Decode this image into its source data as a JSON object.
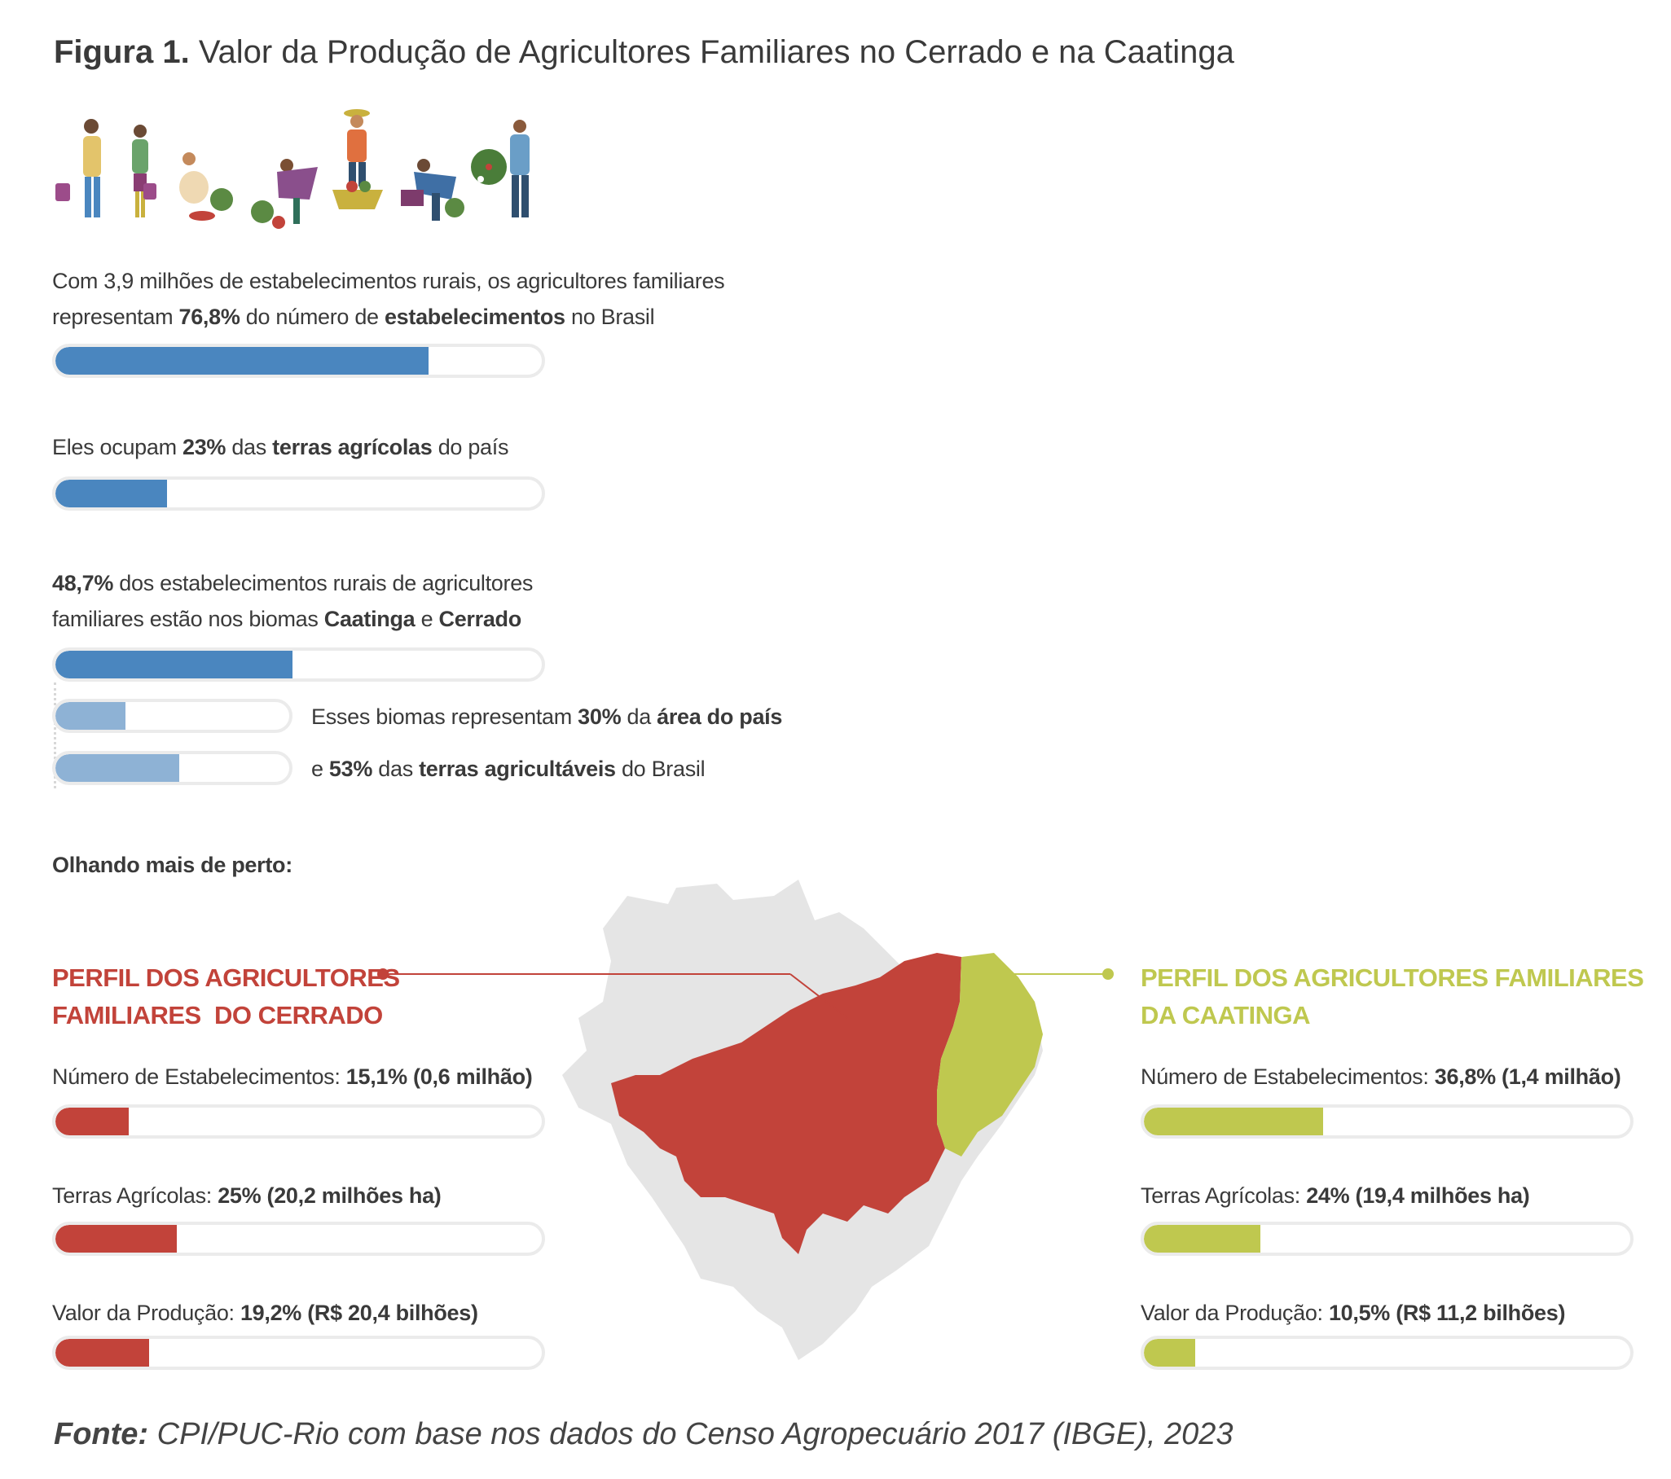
{
  "title": {
    "prefix": "Figura 1.",
    "text": "Valor da Produção de Agricultores Familiares no Cerrado e na Caatinga"
  },
  "colors": {
    "blue": "#4a86bf",
    "light_blue": "#8eb2d5",
    "red": "#c2433a",
    "green": "#bfc84f",
    "track": "#ebebeb",
    "map_gray": "#e5e5e5"
  },
  "stats": {
    "establishments": {
      "pre": "Com 3,9 milhões de estabelecimentos rurais, os agricultores familiares",
      "line2_pre": "representam ",
      "pct": "76,8%",
      "mid": " do número de ",
      "bold": "estabelecimentos",
      "post": " no Brasil",
      "value": 76.8
    },
    "land": {
      "pre": "Eles ocupam ",
      "pct": "23%",
      "mid": " das ",
      "bold": "terras agrícolas",
      "post": " do país",
      "value": 23
    },
    "biomes": {
      "pct": "48,7%",
      "line1_post": " dos estabelecimentos rurais de agricultores",
      "line2_pre": "familiares estão nos biomas ",
      "b1": "Caatinga",
      "and": " e ",
      "b2": "Cerrado",
      "value": 48.7
    },
    "area": {
      "pre": "Esses biomas representam ",
      "pct": "30%",
      "mid": " da ",
      "bold": "área do país",
      "value": 30
    },
    "arable": {
      "pre": "e ",
      "pct": "53%",
      "mid": " das ",
      "bold": "terras agricultáveis",
      "post": " do Brasil",
      "value": 53
    }
  },
  "closer_look": "Olhando mais de perto:",
  "cerrado": {
    "heading_line1": "PERFIL DOS AGRICULTORES",
    "heading_line2": "FAMILIARES  DO CERRADO",
    "rows": [
      {
        "label": "Número de Estabelecimentos: ",
        "value_text": "15,1% (0,6 milhão)",
        "value": 15.1
      },
      {
        "label": "Terras Agrícolas: ",
        "value_text": "25% (20,2 milhões ha)",
        "value": 25
      },
      {
        "label": "Valor da Produção: ",
        "value_text": "19,2% (R$ 20,4 bilhões)",
        "value": 19.2
      }
    ]
  },
  "caatinga": {
    "heading_line1": "PERFIL DOS AGRICULTORES FAMILIARES",
    "heading_line2": "DA CAATINGA",
    "rows": [
      {
        "label": "Número de Estabelecimentos: ",
        "value_text": "36,8% (1,4 milhão)",
        "value": 36.8
      },
      {
        "label": "Terras Agrícolas: ",
        "value_text": "24% (19,4 milhões ha)",
        "value": 24
      },
      {
        "label": "Valor da Produção: ",
        "value_text": "10,5% (R$ 11,2 bilhões)",
        "value": 10.5
      }
    ]
  },
  "source": {
    "label": "Fonte:",
    "text": " CPI/PUC-Rio com base nos dados do Censo Agropecuário 2017 (IBGE), 2023"
  },
  "chart_data": [
    {
      "type": "bar",
      "categories": [
        "estabelecimentos",
        "terras agrícolas",
        "Caatinga e Cerrado",
        "área do país",
        "terras agricultáveis"
      ],
      "values": [
        76.8,
        23,
        48.7,
        30,
        53
      ]
    },
    {
      "type": "bar",
      "title": "PERFIL DOS AGRICULTORES FAMILIARES  DO CERRADO",
      "categories": [
        "Número de Estabelecimentos",
        "Terras Agrícolas",
        "Valor da Produção"
      ],
      "values": [
        15.1,
        25,
        19.2
      ]
    },
    {
      "type": "bar",
      "title": "PERFIL DOS AGRICULTORES FAMILIARES DA CAATINGA",
      "categories": [
        "Número de Estabelecimentos",
        "Terras Agrícolas",
        "Valor da Produção"
      ],
      "values": [
        36.8,
        24,
        10.5
      ]
    }
  ]
}
